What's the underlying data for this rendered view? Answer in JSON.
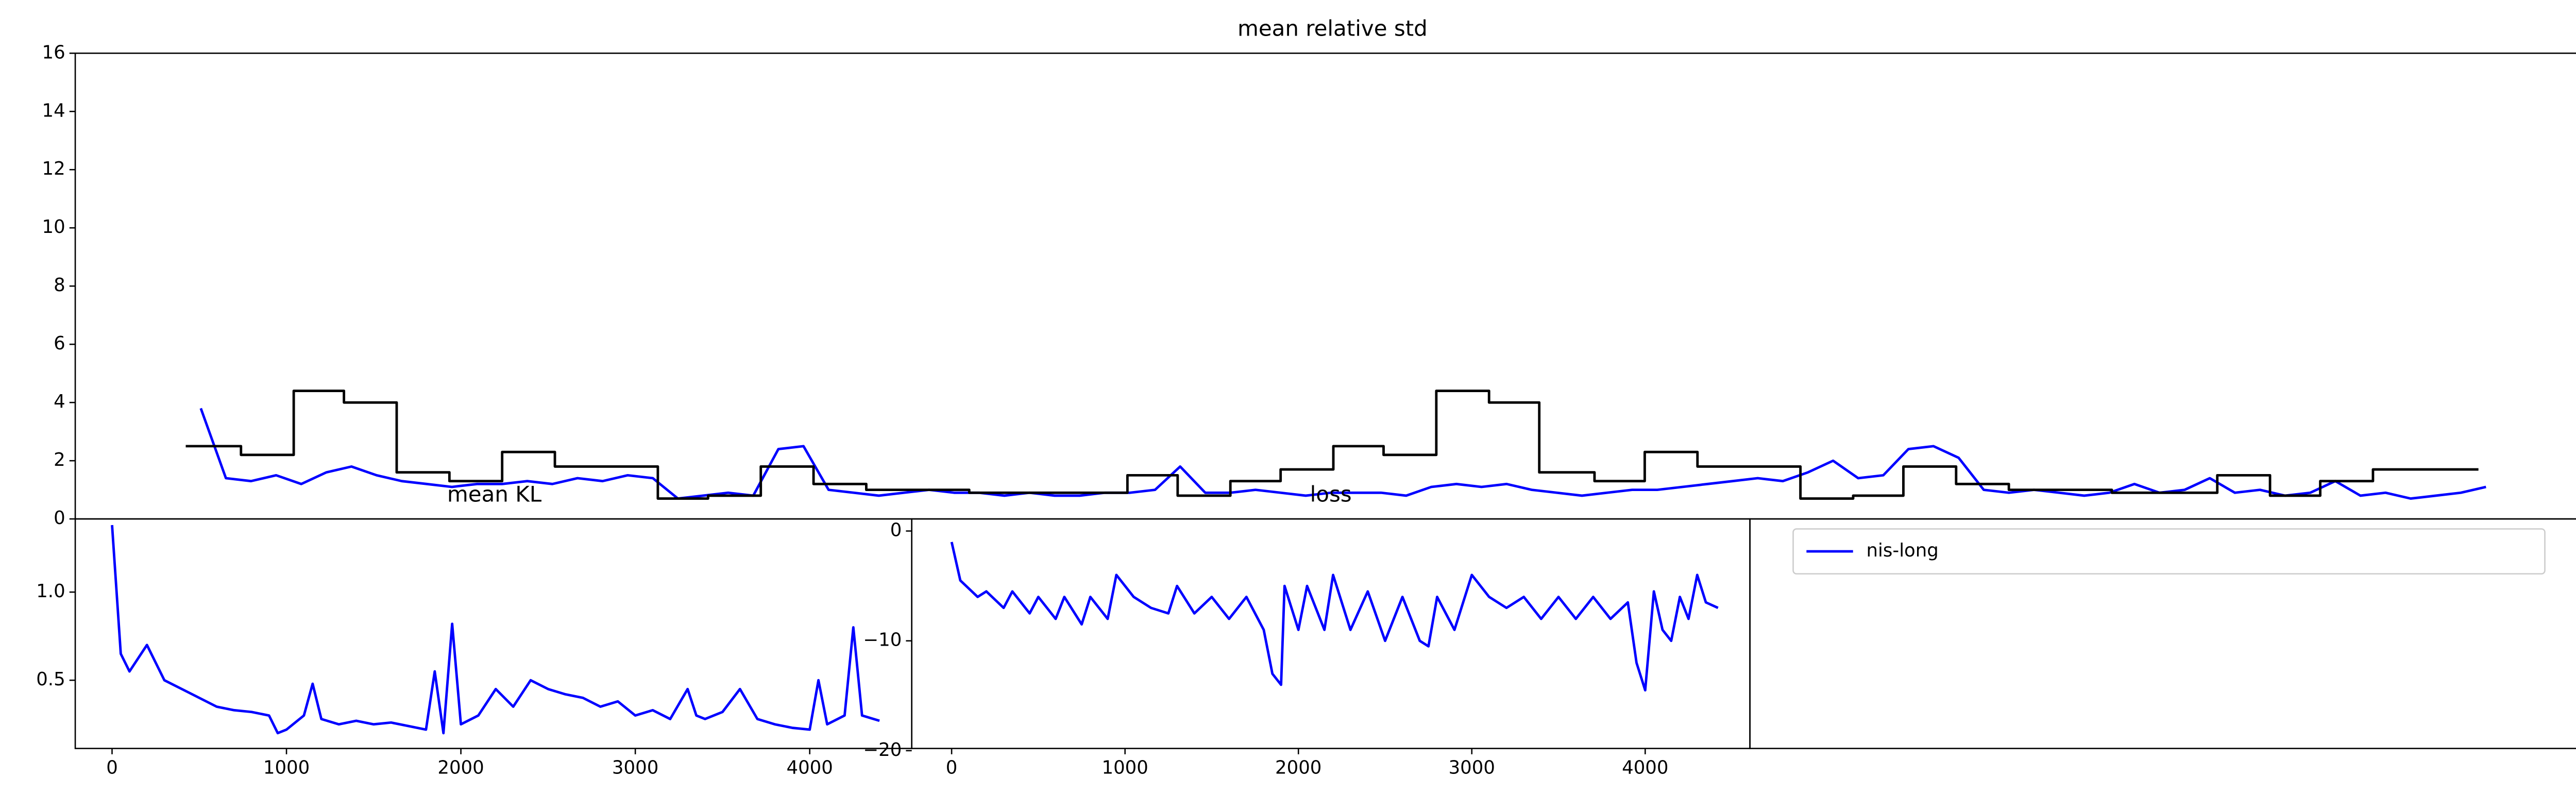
{
  "chart_data": [
    {
      "type": "line",
      "title": "mean relative std",
      "ylim": [
        0,
        16
      ],
      "yticks": [
        0,
        2,
        4,
        6,
        8,
        10,
        12,
        14,
        16
      ],
      "xlim": [
        0,
        100
      ],
      "series": [
        {
          "color": "#0000ff",
          "x": [
            5,
            6,
            7,
            8,
            9,
            10,
            11,
            12,
            13,
            14,
            15,
            16,
            17,
            18,
            19,
            20,
            21,
            22,
            23,
            24,
            25,
            26,
            27,
            28,
            29,
            30,
            31,
            32,
            33,
            34,
            35,
            36,
            37,
            38,
            39,
            40,
            41,
            42,
            43,
            44,
            45,
            46,
            47,
            48,
            49,
            50,
            51,
            52,
            53,
            54,
            55,
            56,
            57,
            58,
            59,
            60,
            61,
            62,
            63,
            64,
            65,
            66,
            67,
            68,
            69,
            70,
            71,
            72,
            73,
            74,
            75,
            76,
            77,
            78,
            79,
            80,
            81,
            82,
            83,
            84,
            85,
            86,
            87,
            88,
            89,
            90,
            91,
            92,
            93,
            94,
            95,
            96
          ],
          "values": [
            3.8,
            1.4,
            1.3,
            1.5,
            1.2,
            1.6,
            1.8,
            1.5,
            1.3,
            1.2,
            1.1,
            1.2,
            1.2,
            1.3,
            1.2,
            1.4,
            1.3,
            1.5,
            1.4,
            0.7,
            0.8,
            0.9,
            0.8,
            2.4,
            2.5,
            1.0,
            0.9,
            0.8,
            0.9,
            1.0,
            0.9,
            0.9,
            0.8,
            0.9,
            0.8,
            0.8,
            0.9,
            0.9,
            1.0,
            1.8,
            0.9,
            0.9,
            1.0,
            0.9,
            0.8,
            0.9,
            0.9,
            0.9,
            0.8,
            1.1,
            1.2,
            1.1,
            1.2,
            1.0,
            0.9,
            0.8,
            0.9,
            1.0,
            1.0,
            1.1,
            1.2,
            1.3,
            1.4,
            1.3,
            1.6,
            2.0,
            1.4,
            1.5,
            2.4,
            2.5,
            2.1,
            1.0,
            0.9,
            1.0,
            0.9,
            0.8,
            0.9,
            1.2,
            0.9,
            1.0,
            1.4,
            0.9,
            1.0,
            0.8,
            0.9,
            1.3,
            0.8,
            0.9,
            0.7,
            0.8,
            0.9,
            1.1
          ]
        },
        {
          "color": "#000000",
          "step": "post",
          "x": [
            4.4,
            6.6,
            8.7,
            10.7,
            12.8,
            14.9,
            17.0,
            19.1,
            23.2,
            25.2,
            27.3,
            29.4,
            31.5,
            35.6,
            39.8,
            41.9,
            43.9,
            46.0,
            48.0,
            50.1,
            52.1,
            54.2,
            56.3,
            58.3,
            60.5,
            62.5,
            64.6,
            68.7,
            70.8,
            72.8,
            74.9,
            77.0,
            81.1,
            85.3,
            87.4,
            89.4,
            91.5,
            95.7
          ],
          "values": [
            2.5,
            2.2,
            4.4,
            4.0,
            1.6,
            1.3,
            2.3,
            1.8,
            0.7,
            0.8,
            1.8,
            1.2,
            1.0,
            0.9,
            0.9,
            1.5,
            0.8,
            1.3,
            1.7,
            2.5,
            2.2,
            4.4,
            4.0,
            1.6,
            1.3,
            2.3,
            1.8,
            0.7,
            0.8,
            1.8,
            1.2,
            1.0,
            0.9,
            1.5,
            0.8,
            1.3,
            1.7,
            1.7
          ]
        }
      ]
    },
    {
      "type": "line",
      "title": "mean KL",
      "xlim": [
        -211,
        4585
      ],
      "xticks": [
        0,
        1000,
        2000,
        3000,
        4000
      ],
      "ylim": [
        0.113,
        1.415
      ],
      "yticks": [
        0.5,
        {
          "value": 1,
          "label": "1.0"
        }
      ],
      "series": [
        {
          "color": "#0000ff",
          "x": [
            0,
            50,
            100,
            200,
            300,
            400,
            500,
            600,
            700,
            800,
            900,
            950,
            1000,
            1100,
            1150,
            1200,
            1300,
            1400,
            1500,
            1600,
            1700,
            1800,
            1850,
            1900,
            1950,
            2000,
            2100,
            2200,
            2300,
            2400,
            2500,
            2600,
            2700,
            2800,
            2900,
            3000,
            3100,
            3200,
            3300,
            3350,
            3400,
            3500,
            3600,
            3700,
            3800,
            3900,
            4000,
            4050,
            4100,
            4200,
            4250,
            4300,
            4400
          ],
          "values": [
            1.38,
            0.65,
            0.55,
            0.7,
            0.5,
            0.45,
            0.4,
            0.35,
            0.33,
            0.32,
            0.3,
            0.2,
            0.22,
            0.3,
            0.48,
            0.28,
            0.25,
            0.27,
            0.25,
            0.26,
            0.24,
            0.22,
            0.55,
            0.2,
            0.82,
            0.25,
            0.3,
            0.45,
            0.35,
            0.5,
            0.45,
            0.42,
            0.4,
            0.35,
            0.38,
            0.3,
            0.33,
            0.28,
            0.45,
            0.3,
            0.28,
            0.32,
            0.45,
            0.28,
            0.25,
            0.23,
            0.22,
            0.5,
            0.25,
            0.3,
            0.8,
            0.3,
            0.27
          ]
        }
      ]
    },
    {
      "type": "line",
      "title": "loss",
      "xlim": [
        -230,
        4604
      ],
      "xticks": [
        0,
        1000,
        2000,
        3000,
        4000
      ],
      "ylim": [
        -19.8,
        1.1
      ],
      "yticks": [
        0,
        {
          "value": -10,
          "label": "−10"
        },
        {
          "value": -20,
          "label": "−20"
        }
      ],
      "series": [
        {
          "color": "#0000ff",
          "x": [
            0,
            50,
            150,
            200,
            300,
            350,
            450,
            500,
            600,
            650,
            750,
            800,
            900,
            950,
            1050,
            1150,
            1250,
            1300,
            1400,
            1500,
            1600,
            1700,
            1800,
            1850,
            1900,
            1920,
            2000,
            2050,
            2150,
            2200,
            2300,
            2400,
            2500,
            2600,
            2700,
            2750,
            2800,
            2900,
            3000,
            3100,
            3200,
            3300,
            3400,
            3500,
            3600,
            3700,
            3800,
            3900,
            3950,
            4000,
            4050,
            4100,
            4150,
            4200,
            4250,
            4300,
            4350,
            4420
          ],
          "values": [
            -1,
            -4.5,
            -6,
            -5.5,
            -7,
            -5.5,
            -7.5,
            -6,
            -8,
            -6,
            -8.5,
            -6,
            -8,
            -4,
            -6,
            -7,
            -7.5,
            -5,
            -7.5,
            -6,
            -8,
            -6,
            -9,
            -13,
            -14,
            -5,
            -9,
            -5,
            -9,
            -4,
            -9,
            -5.5,
            -10,
            -6,
            -10,
            -10.5,
            -6,
            -9,
            -4,
            -6,
            -7,
            -6,
            -8,
            -6,
            -8,
            -6,
            -8,
            -6.5,
            -12,
            -14.5,
            -5.5,
            -9,
            -10,
            -6,
            -8,
            -4,
            -6.5,
            -7
          ]
        }
      ]
    },
    {
      "type": "legend",
      "series": [
        {
          "name": "nis-long",
          "color": "#0000ff"
        }
      ]
    }
  ]
}
